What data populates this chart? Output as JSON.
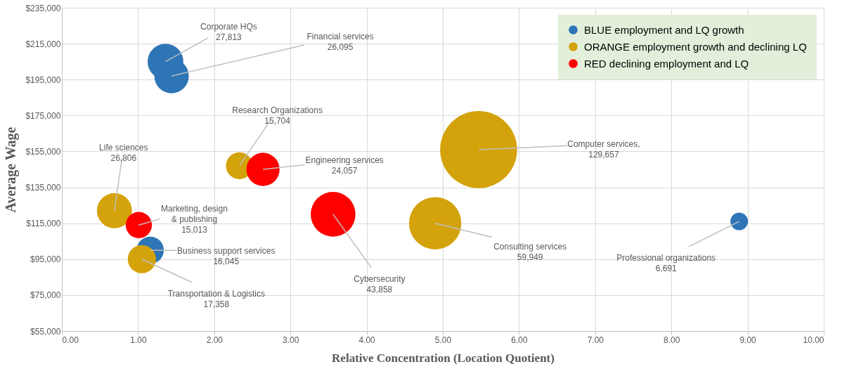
{
  "chart_data": {
    "type": "bubble",
    "xlabel": "Relative Concentration (Location Quotient)",
    "ylabel": "Average Wage",
    "xlim": [
      0,
      10
    ],
    "ylim": [
      55000,
      235000
    ],
    "xticks": [
      {
        "value": 0,
        "label": "0.00"
      },
      {
        "value": 1,
        "label": "1.00"
      },
      {
        "value": 2,
        "label": "2.00"
      },
      {
        "value": 3,
        "label": "3.00"
      },
      {
        "value": 4,
        "label": "4.00"
      },
      {
        "value": 5,
        "label": "5.00"
      },
      {
        "value": 6,
        "label": "6.00"
      },
      {
        "value": 7,
        "label": "7.00"
      },
      {
        "value": 8,
        "label": "8.00"
      },
      {
        "value": 9,
        "label": "9.00"
      },
      {
        "value": 10,
        "label": "10.00"
      }
    ],
    "yticks": [
      {
        "value": 55000,
        "label": "$55,000"
      },
      {
        "value": 75000,
        "label": "$75,000"
      },
      {
        "value": 95000,
        "label": "$95,000"
      },
      {
        "value": 115000,
        "label": "$115,000"
      },
      {
        "value": 135000,
        "label": "$135,000"
      },
      {
        "value": 155000,
        "label": "$155,000"
      },
      {
        "value": 175000,
        "label": "$175,000"
      },
      {
        "value": 195000,
        "label": "$195,000"
      },
      {
        "value": 215000,
        "label": "$215,000"
      },
      {
        "value": 235000,
        "label": "$235,000"
      }
    ],
    "grid": true,
    "legend": "top right",
    "series": [
      {
        "name": "BLUE employment and LQ growth",
        "color": "#2e75b6",
        "x": [
          1.36,
          1.44,
          1.16,
          8.89
        ],
        "values": [
          205000,
          197000,
          100000,
          116000
        ],
        "sizes": [
          0.215,
          0.201,
          0.124,
          0.052
        ]
      },
      {
        "name": "ORANGE employment growth and declining LQ",
        "color": "#d4a20a",
        "x": [
          2.33,
          0.69,
          1.05,
          5.47,
          4.9
        ],
        "values": [
          147000,
          122000,
          95000,
          156000,
          115000
        ],
        "sizes": [
          0.121,
          0.207,
          0.134,
          1,
          0.462
        ]
      },
      {
        "name": "RED declining employment and LQ",
        "color": "#ff0000",
        "x": [
          2.64,
          1.01,
          3.56
        ],
        "values": [
          145000,
          114000,
          120000
        ],
        "sizes": [
          0.186,
          0.116,
          0.338
        ]
      }
    ],
    "annotations": [
      {
        "text": "Corporate HQs\n27,813",
        "x": 1.36,
        "y": 205000
      },
      {
        "text": "Financial services\n26,095",
        "x": 1.44,
        "y": 197000
      },
      {
        "text": "Business support services\n16,045",
        "x": 1.16,
        "y": 100000
      },
      {
        "text": "Professional organizations\n6,691",
        "x": 8.89,
        "y": 116000
      },
      {
        "text": "Research Organizations\n15,704",
        "x": 2.33,
        "y": 147000
      },
      {
        "text": "Life sciences\n26,806",
        "x": 0.69,
        "y": 122000
      },
      {
        "text": "Transportation & Logistics\n17,358",
        "x": 1.05,
        "y": 95000
      },
      {
        "text": "Computer services,\n129,657",
        "x": 5.47,
        "y": 156000
      },
      {
        "text": "Consulting services\n59,949",
        "x": 4.9,
        "y": 115000
      },
      {
        "text": "Engineering services\n24,057",
        "x": 2.64,
        "y": 145000
      },
      {
        "text": "Marketing, design\n& publishing\n15,013",
        "x": 1.01,
        "y": 114000
      },
      {
        "text": "Cybersecurity\n43,858",
        "x": 3.56,
        "y": 120000
      }
    ]
  }
}
